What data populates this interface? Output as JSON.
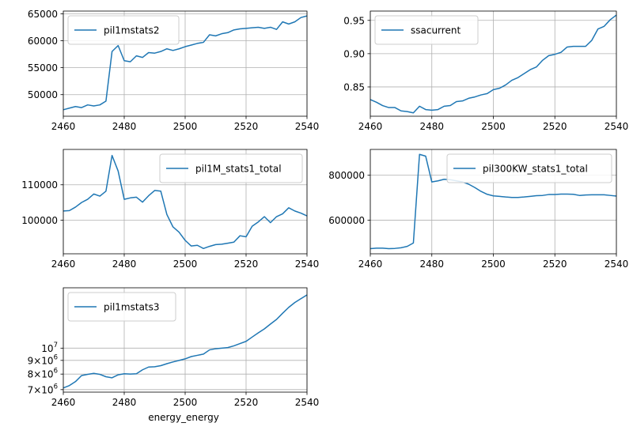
{
  "figure": {
    "xlabel": "energy_energy"
  },
  "colors": {
    "line": "#1f77b4",
    "grid": "#b0b0b0",
    "axes": "#000000",
    "legend_edge": "#cccccc"
  },
  "chart_data": [
    {
      "type": "line",
      "scale": "linear",
      "grid": true,
      "legend_position": "top-left",
      "xlim": [
        2460,
        2540
      ],
      "ylim": [
        46000,
        65500
      ],
      "xticks": [
        2460,
        2480,
        2500,
        2520,
        2540
      ],
      "xtick_labels": [
        "2460",
        "2480",
        "2500",
        "2520",
        "2540"
      ],
      "yticks": [
        50000,
        55000,
        60000,
        65000
      ],
      "ytick_labels": [
        "50000",
        "55000",
        "60000",
        "65000"
      ],
      "series": [
        {
          "name": "pil1mstats2",
          "x": [
            2460,
            2462,
            2464,
            2466,
            2468,
            2470,
            2472,
            2474,
            2476,
            2478,
            2480,
            2482,
            2484,
            2486,
            2488,
            2490,
            2492,
            2494,
            2496,
            2498,
            2500,
            2502,
            2504,
            2506,
            2508,
            2510,
            2512,
            2514,
            2516,
            2518,
            2520,
            2522,
            2524,
            2526,
            2528,
            2530,
            2532,
            2534,
            2536,
            2538,
            2540
          ],
          "values": [
            47200,
            47500,
            47800,
            47600,
            48100,
            47900,
            48100,
            48800,
            58000,
            59100,
            56300,
            56100,
            57200,
            56900,
            57800,
            57700,
            58000,
            58500,
            58200,
            58500,
            58900,
            59200,
            59500,
            59700,
            61100,
            60900,
            61300,
            61500,
            62000,
            62200,
            62300,
            62400,
            62500,
            62300,
            62500,
            62100,
            63500,
            63100,
            63500,
            64300,
            64600
          ]
        }
      ]
    },
    {
      "type": "line",
      "scale": "linear",
      "grid": true,
      "legend_position": "top-left",
      "xlim": [
        2460,
        2540
      ],
      "ylim": [
        0.806,
        0.964
      ],
      "xticks": [
        2460,
        2480,
        2500,
        2520,
        2540
      ],
      "xtick_labels": [
        "2460",
        "2480",
        "2500",
        "2520",
        "2540"
      ],
      "yticks": [
        0.85,
        0.9,
        0.95
      ],
      "ytick_labels": [
        "0.85",
        "0.90",
        "0.95"
      ],
      "series": [
        {
          "name": "ssacurrent",
          "x": [
            2460,
            2462,
            2464,
            2466,
            2468,
            2470,
            2472,
            2474,
            2476,
            2478,
            2480,
            2482,
            2484,
            2486,
            2488,
            2490,
            2492,
            2494,
            2496,
            2498,
            2500,
            2502,
            2504,
            2506,
            2508,
            2510,
            2512,
            2514,
            2516,
            2518,
            2520,
            2522,
            2524,
            2526,
            2528,
            2530,
            2532,
            2534,
            2536,
            2538,
            2540
          ],
          "values": [
            0.831,
            0.827,
            0.822,
            0.819,
            0.819,
            0.814,
            0.813,
            0.811,
            0.821,
            0.816,
            0.815,
            0.816,
            0.821,
            0.822,
            0.828,
            0.829,
            0.833,
            0.835,
            0.838,
            0.84,
            0.846,
            0.848,
            0.853,
            0.86,
            0.864,
            0.87,
            0.876,
            0.88,
            0.89,
            0.897,
            0.899,
            0.902,
            0.91,
            0.911,
            0.911,
            0.911,
            0.92,
            0.937,
            0.941,
            0.951,
            0.958
          ]
        }
      ]
    },
    {
      "type": "line",
      "scale": "linear",
      "grid": true,
      "legend_position": "top-right",
      "xlim": [
        2460,
        2540
      ],
      "ylim": [
        90500,
        120000
      ],
      "xticks": [
        2460,
        2480,
        2500,
        2520,
        2540
      ],
      "xtick_labels": [
        "2460",
        "2480",
        "2500",
        "2520",
        "2540"
      ],
      "yticks": [
        100000,
        110000
      ],
      "ytick_labels": [
        "100000",
        "110000"
      ],
      "series": [
        {
          "name": "pil1M_stats1_total",
          "x": [
            2460,
            2462,
            2464,
            2466,
            2468,
            2470,
            2472,
            2474,
            2476,
            2478,
            2480,
            2482,
            2484,
            2486,
            2488,
            2490,
            2492,
            2494,
            2496,
            2498,
            2500,
            2502,
            2504,
            2506,
            2508,
            2510,
            2512,
            2514,
            2516,
            2518,
            2520,
            2522,
            2524,
            2526,
            2528,
            2530,
            2532,
            2534,
            2536,
            2538,
            2540
          ],
          "values": [
            102600,
            102700,
            103700,
            105000,
            105900,
            107400,
            106800,
            108200,
            118300,
            113900,
            105900,
            106300,
            106500,
            105100,
            106900,
            108400,
            108200,
            101600,
            98100,
            96600,
            94300,
            92700,
            92900,
            92000,
            92600,
            93100,
            93200,
            93500,
            93800,
            95600,
            95300,
            98300,
            99500,
            101000,
            99300,
            101000,
            101800,
            103500,
            102600,
            102000,
            101200
          ]
        }
      ]
    },
    {
      "type": "line",
      "scale": "linear",
      "grid": true,
      "legend_position": "top-right",
      "xlim": [
        2460,
        2540
      ],
      "ylim": [
        450000,
        915000
      ],
      "xticks": [
        2460,
        2480,
        2500,
        2520,
        2540
      ],
      "xtick_labels": [
        "2460",
        "2480",
        "2500",
        "2520",
        "2540"
      ],
      "yticks": [
        600000,
        800000
      ],
      "ytick_labels": [
        "600000",
        "800000"
      ],
      "series": [
        {
          "name": "pil300KW_stats1_total",
          "x": [
            2460,
            2462,
            2464,
            2466,
            2468,
            2470,
            2472,
            2474,
            2476,
            2478,
            2480,
            2482,
            2484,
            2486,
            2488,
            2490,
            2492,
            2494,
            2496,
            2498,
            2500,
            2502,
            2504,
            2506,
            2508,
            2510,
            2512,
            2514,
            2516,
            2518,
            2520,
            2522,
            2524,
            2526,
            2528,
            2530,
            2532,
            2534,
            2536,
            2538,
            2540
          ],
          "values": [
            473000,
            475000,
            475000,
            473000,
            474000,
            477000,
            483000,
            498000,
            893000,
            885000,
            770000,
            775000,
            782000,
            780000,
            775000,
            770000,
            760000,
            745000,
            728000,
            715000,
            708000,
            706000,
            703000,
            701000,
            701000,
            703000,
            706000,
            709000,
            710000,
            714000,
            714000,
            716000,
            716000,
            715000,
            710000,
            712000,
            713000,
            713000,
            713000,
            710000,
            707000
          ]
        }
      ]
    },
    {
      "type": "line",
      "scale": "log",
      "grid": true,
      "legend_position": "top-left",
      "xlim": [
        2460,
        2540
      ],
      "ylim": [
        6850000,
        16800000
      ],
      "xticks": [
        2460,
        2480,
        2500,
        2520,
        2540
      ],
      "xtick_labels": [
        "2460",
        "2480",
        "2500",
        "2520",
        "2540"
      ],
      "yticks": [
        7000000,
        8000000,
        9000000,
        10000000
      ],
      "ytick_labels": [
        {
          "base": "7",
          "sep": "×",
          "exp_base": "10",
          "exp": "6"
        },
        {
          "base": "8",
          "sep": "×",
          "exp_base": "10",
          "exp": "6"
        },
        {
          "base": "9",
          "sep": "×",
          "exp_base": "10",
          "exp": "6"
        },
        {
          "base": "",
          "sep": "",
          "exp_base": "10",
          "exp": "7"
        }
      ],
      "xlabel": "energy_energy",
      "series": [
        {
          "name": "pil1mstats3",
          "x": [
            2460,
            2462,
            2464,
            2466,
            2468,
            2470,
            2472,
            2474,
            2476,
            2478,
            2480,
            2482,
            2484,
            2486,
            2488,
            2490,
            2492,
            2494,
            2496,
            2498,
            2500,
            2502,
            2504,
            2506,
            2508,
            2510,
            2512,
            2514,
            2516,
            2518,
            2520,
            2522,
            2524,
            2526,
            2528,
            2530,
            2532,
            2534,
            2536,
            2538,
            2540
          ],
          "values": [
            7100000,
            7250000,
            7500000,
            7900000,
            7980000,
            8050000,
            7980000,
            7820000,
            7750000,
            7950000,
            8020000,
            8000000,
            8020000,
            8300000,
            8500000,
            8520000,
            8600000,
            8750000,
            8880000,
            9000000,
            9120000,
            9300000,
            9400000,
            9500000,
            9850000,
            9950000,
            10000000,
            10050000,
            10200000,
            10400000,
            10600000,
            11000000,
            11400000,
            11800000,
            12300000,
            12800000,
            13500000,
            14200000,
            14800000,
            15300000,
            15800000
          ]
        }
      ]
    }
  ]
}
